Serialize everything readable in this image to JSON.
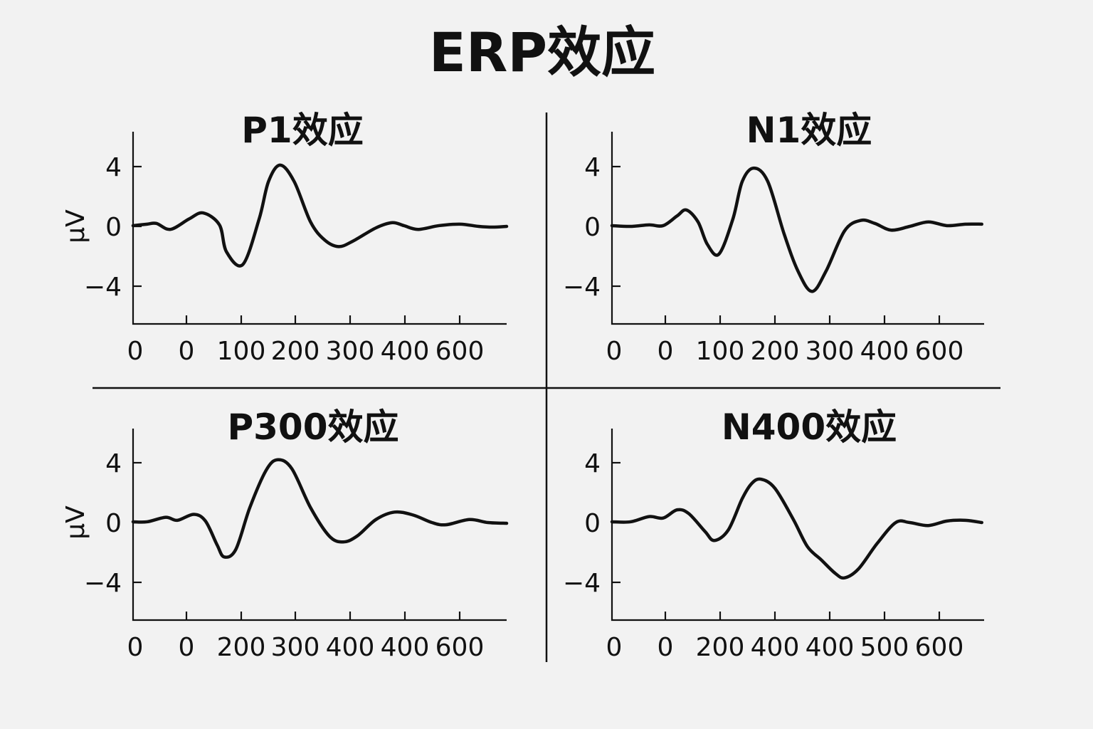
{
  "title": "ERP效应",
  "chart_data": [
    {
      "type": "line",
      "title": "P1效应",
      "ylabel": "μV",
      "xlabel": "",
      "ylim": [
        -6.5,
        6.5
      ],
      "yticks": [
        4,
        0,
        -4
      ],
      "ytick_labels": [
        "4",
        "0",
        "−4"
      ],
      "xtick_labels": [
        "0",
        "0",
        "100",
        "200",
        "300",
        "400",
        "600"
      ],
      "series": [
        {
          "values": [
            [
              0,
              0.05
            ],
            [
              30,
              0.15
            ],
            [
              50,
              0.2
            ],
            [
              80,
              -0.2
            ],
            [
              120,
              0.5
            ],
            [
              150,
              0.9
            ],
            [
              185,
              0.1
            ],
            [
              200,
              -1.7
            ],
            [
              235,
              -2.55
            ],
            [
              270,
              0.5
            ],
            [
              290,
              3.0
            ],
            [
              315,
              4.1
            ],
            [
              345,
              3.0
            ],
            [
              380,
              0.3
            ],
            [
              410,
              -0.9
            ],
            [
              440,
              -1.35
            ],
            [
              470,
              -1.0
            ],
            [
              520,
              -0.1
            ],
            [
              555,
              0.25
            ],
            [
              580,
              0.05
            ],
            [
              610,
              -0.2
            ],
            [
              655,
              0.05
            ],
            [
              700,
              0.15
            ],
            [
              740,
              0.0
            ],
            [
              770,
              -0.05
            ],
            [
              800,
              0.0
            ]
          ]
        }
      ]
    },
    {
      "type": "line",
      "title": "N1效应",
      "ylabel": "",
      "xlabel": "",
      "ylim": [
        -6.5,
        6.5
      ],
      "yticks": [
        4,
        0,
        -4
      ],
      "ytick_labels": [
        "4",
        "0",
        "−4"
      ],
      "xtick_labels": [
        "0",
        "0",
        "100",
        "200",
        "300",
        "400",
        "600"
      ],
      "series": [
        {
          "values": [
            [
              0,
              0.05
            ],
            [
              40,
              0.0
            ],
            [
              80,
              0.1
            ],
            [
              110,
              0.05
            ],
            [
              140,
              0.7
            ],
            [
              160,
              1.1
            ],
            [
              185,
              0.3
            ],
            [
              205,
              -1.2
            ],
            [
              230,
              -1.85
            ],
            [
              260,
              0.5
            ],
            [
              280,
              3.0
            ],
            [
              305,
              3.9
            ],
            [
              335,
              3.0
            ],
            [
              370,
              -0.5
            ],
            [
              400,
              -3.0
            ],
            [
              430,
              -4.35
            ],
            [
              460,
              -3.0
            ],
            [
              500,
              -0.3
            ],
            [
              535,
              0.4
            ],
            [
              565,
              0.2
            ],
            [
              600,
              -0.25
            ],
            [
              640,
              0.0
            ],
            [
              680,
              0.3
            ],
            [
              720,
              0.05
            ],
            [
              760,
              0.15
            ],
            [
              795,
              0.15
            ]
          ]
        }
      ]
    },
    {
      "type": "line",
      "title": "P300效应",
      "ylabel": "μV",
      "xlabel": "",
      "ylim": [
        -6.5,
        6.5
      ],
      "yticks": [
        4,
        0,
        -4
      ],
      "ytick_labels": [
        "4",
        "0",
        "−4"
      ],
      "xtick_labels": [
        "0",
        "0",
        "200",
        "300",
        "400",
        "400",
        "600"
      ],
      "series": [
        {
          "values": [
            [
              0,
              0.05
            ],
            [
              30,
              0.05
            ],
            [
              70,
              0.35
            ],
            [
              95,
              0.15
            ],
            [
              130,
              0.55
            ],
            [
              155,
              0.1
            ],
            [
              180,
              -1.5
            ],
            [
              195,
              -2.3
            ],
            [
              220,
              -1.8
            ],
            [
              250,
              1.0
            ],
            [
              285,
              3.5
            ],
            [
              310,
              4.2
            ],
            [
              340,
              3.6
            ],
            [
              380,
              1.0
            ],
            [
              420,
              -0.9
            ],
            [
              450,
              -1.3
            ],
            [
              480,
              -0.9
            ],
            [
              520,
              0.2
            ],
            [
              560,
              0.7
            ],
            [
              600,
              0.5
            ],
            [
              640,
              0.0
            ],
            [
              670,
              -0.15
            ],
            [
              720,
              0.2
            ],
            [
              760,
              0.0
            ],
            [
              800,
              -0.05
            ]
          ]
        }
      ]
    },
    {
      "type": "line",
      "title": "N400效应",
      "ylabel": "",
      "xlabel": "",
      "ylim": [
        -6.5,
        6.5
      ],
      "yticks": [
        4,
        0,
        -4
      ],
      "ytick_labels": [
        "4",
        "0",
        "−4"
      ],
      "xtick_labels": [
        "0",
        "0",
        "200",
        "400",
        "400",
        "500",
        "600"
      ],
      "series": [
        {
          "values": [
            [
              0,
              0.05
            ],
            [
              40,
              0.05
            ],
            [
              80,
              0.4
            ],
            [
              110,
              0.3
            ],
            [
              140,
              0.85
            ],
            [
              165,
              0.6
            ],
            [
              200,
              -0.6
            ],
            [
              220,
              -1.2
            ],
            [
              250,
              -0.5
            ],
            [
              280,
              1.6
            ],
            [
              300,
              2.6
            ],
            [
              320,
              2.9
            ],
            [
              350,
              2.3
            ],
            [
              390,
              0.2
            ],
            [
              420,
              -1.6
            ],
            [
              450,
              -2.5
            ],
            [
              480,
              -3.4
            ],
            [
              500,
              -3.7
            ],
            [
              530,
              -3.1
            ],
            [
              570,
              -1.4
            ],
            [
              610,
              0.0
            ],
            [
              640,
              0.0
            ],
            [
              680,
              -0.2
            ],
            [
              720,
              0.1
            ],
            [
              760,
              0.15
            ],
            [
              795,
              0.0
            ]
          ]
        }
      ]
    }
  ]
}
